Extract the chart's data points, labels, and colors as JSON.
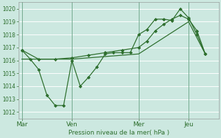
{
  "bg_color": "#cce8e0",
  "grid_color": "#ffffff",
  "line_color": "#2d6e2d",
  "xlabel": "Pression niveau de la mer( hPa )",
  "ylim": [
    1011.5,
    1020.5
  ],
  "yticks": [
    1012,
    1013,
    1014,
    1015,
    1016,
    1017,
    1018,
    1019,
    1020
  ],
  "xtick_labels": [
    "Mar",
    "Ven",
    "Mer",
    "Jeu"
  ],
  "xtick_positions": [
    0,
    3,
    7,
    10
  ],
  "xmin": -0.2,
  "xmax": 11.8,
  "line1_x": [
    0,
    0.5,
    1,
    1.5,
    2,
    2.5,
    3,
    3.5,
    4,
    4.5,
    5,
    5.5,
    6,
    6.5,
    7,
    7.5,
    8,
    8.5,
    9,
    9.5,
    10,
    10.5,
    11
  ],
  "line1_y": [
    1016.8,
    1016.1,
    1015.3,
    1013.3,
    1012.5,
    1012.5,
    1016.0,
    1014.0,
    1014.7,
    1015.5,
    1016.5,
    1016.6,
    1016.6,
    1016.6,
    1018.0,
    1018.4,
    1019.2,
    1019.2,
    1019.1,
    1020.0,
    1019.3,
    1018.0,
    1016.5
  ],
  "line2_x": [
    0,
    3,
    7,
    10,
    11
  ],
  "line2_y": [
    1016.1,
    1016.1,
    1016.5,
    1019.0,
    1016.5
  ],
  "line3_x": [
    0,
    1,
    2,
    3,
    4,
    5,
    6,
    7,
    7.5,
    8,
    8.5,
    9,
    9.5,
    10,
    10.5,
    11
  ],
  "line3_y": [
    1016.8,
    1016.1,
    1016.1,
    1016.2,
    1016.4,
    1016.6,
    1016.8,
    1017.0,
    1017.5,
    1018.3,
    1018.8,
    1019.2,
    1019.5,
    1019.2,
    1018.3,
    1016.5
  ],
  "vline_positions": [
    0,
    3,
    7,
    10
  ]
}
